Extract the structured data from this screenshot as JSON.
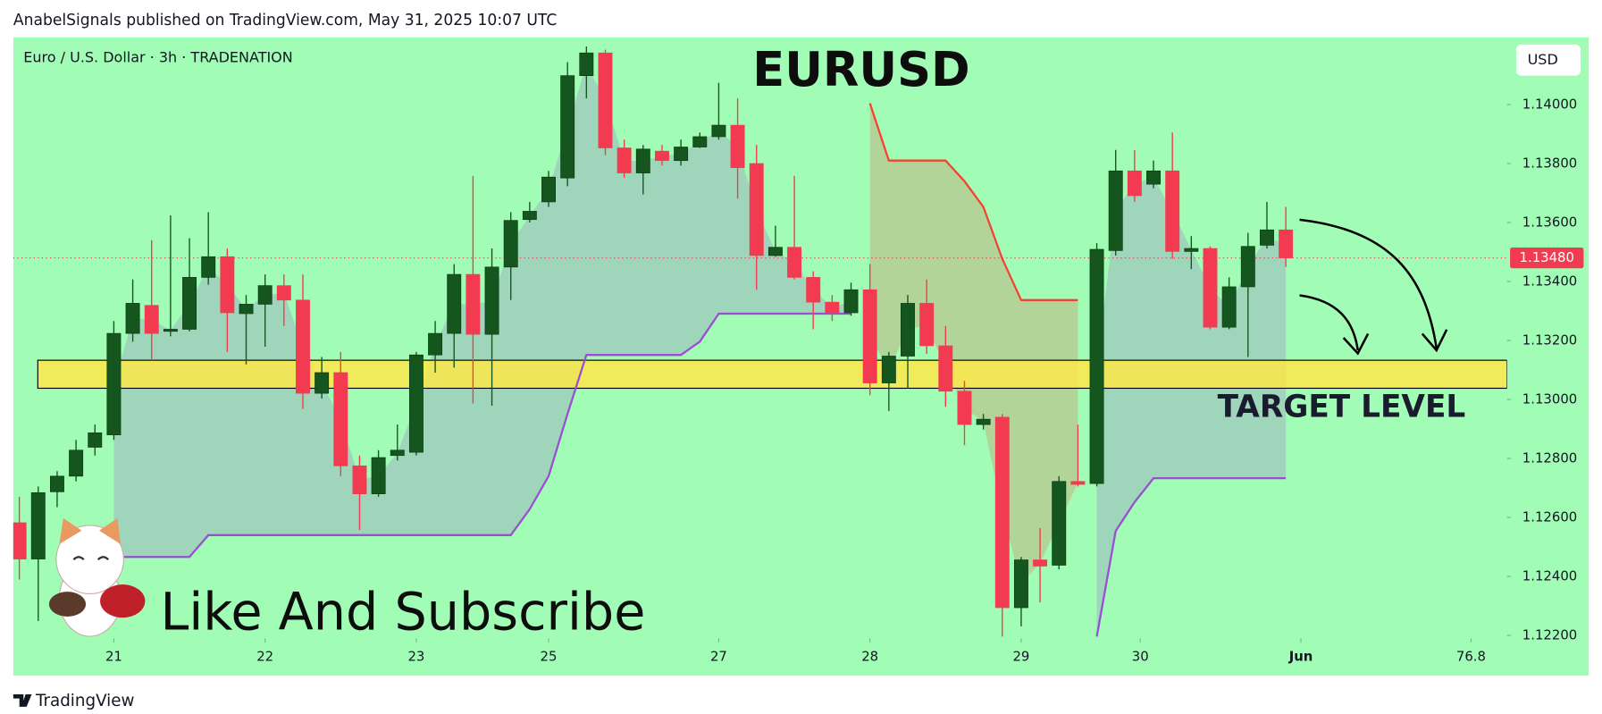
{
  "header": {
    "text": "AnabelSignals published on TradingView.com, May 31, 2025 10:07 UTC"
  },
  "footer": {
    "brand": "TradingView"
  },
  "chart_data": {
    "type": "candlestick",
    "symbol_info": "Euro / U.S. Dollar · 3h · TRADENATION",
    "title": "EURUSD",
    "currency": "USD",
    "annotations": {
      "target": "TARGET LEVEL",
      "call_to_action": "Like And Subscribe"
    },
    "categories": [
      null,
      null,
      null,
      null,
      null,
      null,
      null,
      null,
      null,
      null,
      null,
      null,
      null,
      null,
      null,
      null,
      null,
      null,
      null,
      null,
      null,
      null,
      null,
      null,
      null,
      null,
      null,
      null,
      null,
      null,
      null,
      null,
      null,
      null,
      null,
      null,
      null,
      null,
      null,
      null,
      null,
      null,
      null,
      null,
      null,
      null,
      null,
      null,
      null,
      null,
      null,
      null,
      null,
      null,
      null,
      null,
      null,
      null,
      null,
      null,
      null,
      null,
      null,
      null,
      null,
      null,
      null,
      null
    ],
    "open": [
      1.12582,
      1.12459,
      1.12687,
      1.1274,
      1.12838,
      1.1288,
      1.13224,
      1.13319,
      1.13231,
      1.13238,
      1.13414,
      1.13484,
      1.13291,
      1.13323,
      1.13386,
      1.13337,
      1.13021,
      1.13091,
      1.12775,
      1.1268,
      1.1281,
      1.12821,
      1.13151,
      1.13224,
      1.13424,
      1.13221,
      1.13449,
      1.1361,
      1.1367,
      1.13751,
      1.14098,
      1.14175,
      1.13853,
      1.13768,
      1.13842,
      1.1381,
      1.13856,
      1.13891,
      1.1393,
      1.138,
      1.13488,
      1.13516,
      1.13414,
      1.1333,
      1.13294,
      1.13372,
      1.13056,
      1.13147,
      1.13326,
      1.13182,
      1.13028,
      1.12915,
      1.1294,
      1.12294,
      1.12456,
      1.12438,
      1.12722,
      1.12715,
      1.13505,
      1.13775,
      1.1373,
      1.13775,
      1.13502,
      1.13512,
      1.13245,
      1.13382,
      1.13523,
      1.13575
    ],
    "high": [
      1.1267,
      1.12705,
      1.12757,
      1.12863,
      1.12915,
      1.13266,
      1.13407,
      1.1354,
      1.13624,
      1.13547,
      1.13635,
      1.13512,
      1.13354,
      1.13424,
      1.13424,
      1.13424,
      1.13144,
      1.13161,
      1.1281,
      1.12828,
      1.12915,
      1.13161,
      1.13266,
      1.13459,
      1.13758,
      1.13512,
      1.13635,
      1.1367,
      1.13775,
      1.14144,
      1.14197,
      1.14186,
      1.13881,
      1.13863,
      1.13863,
      1.13881,
      1.13905,
      1.14074,
      1.14021,
      1.13863,
      1.13589,
      1.13758,
      1.13435,
      1.13354,
      1.13396,
      1.13459,
      1.13161,
      1.13354,
      1.13407,
      1.13249,
      1.13063,
      1.12951,
      1.12951,
      1.12466,
      1.12564,
      1.1274,
      1.12915,
      1.1353,
      1.13846,
      1.13846,
      1.1381,
      1.13905,
      1.13554,
      1.13519,
      1.13414,
      1.13565,
      1.1367,
      1.13653
    ],
    "low": [
      1.12389,
      1.12249,
      1.12635,
      1.12722,
      1.1281,
      1.12863,
      1.13196,
      1.13133,
      1.13214,
      1.13231,
      1.13389,
      1.13161,
      1.13119,
      1.13179,
      1.13249,
      1.12968,
      1.13003,
      1.1274,
      1.12557,
      1.1267,
      1.12793,
      1.1281,
      1.13091,
      1.13108,
      1.12986,
      1.12979,
      1.13337,
      1.136,
      1.13653,
      1.13723,
      1.14021,
      1.13828,
      1.13751,
      1.13695,
      1.13793,
      1.13793,
      1.13853,
      1.13881,
      1.13681,
      1.13372,
      1.13484,
      1.13407,
      1.13238,
      1.13266,
      1.13284,
      1.13014,
      1.12961,
      1.13038,
      1.13154,
      1.12975,
      1.12845,
      1.12898,
      1.12196,
      1.12231,
      1.12312,
      1.12424,
      1.12705,
      1.12705,
      1.13488,
      1.1367,
      1.13716,
      1.13477,
      1.13442,
      1.13238,
      1.13238,
      1.13144,
      1.13512,
      1.13449
    ],
    "close": [
      1.12459,
      1.12684,
      1.1274,
      1.12828,
      1.12887,
      1.13224,
      1.13326,
      1.13224,
      1.13238,
      1.13414,
      1.13484,
      1.13294,
      1.13323,
      1.13386,
      1.13337,
      1.13021,
      1.13091,
      1.12775,
      1.1268,
      1.12803,
      1.12828,
      1.13151,
      1.13224,
      1.13424,
      1.13221,
      1.13449,
      1.13607,
      1.13638,
      1.13754,
      1.14098,
      1.14175,
      1.13853,
      1.13768,
      1.13849,
      1.1381,
      1.13856,
      1.13891,
      1.1393,
      1.13786,
      1.13488,
      1.13516,
      1.13414,
      1.1333,
      1.13294,
      1.13372,
      1.13056,
      1.13147,
      1.13326,
      1.13182,
      1.13028,
      1.12915,
      1.12933,
      1.12294,
      1.12456,
      1.12435,
      1.12722,
      1.12712,
      1.13509,
      1.13775,
      1.13691,
      1.13775,
      1.13502,
      1.13512,
      1.13245,
      1.13382,
      1.13519,
      1.13575,
      1.1348
    ],
    "up_color": "#15561f",
    "down_color": "#f23b51",
    "lines": [
      {
        "color": "#9a4fd0",
        "values": [
          null,
          null,
          null,
          null,
          null,
          1.12466,
          1.12466,
          1.12466,
          1.12466,
          1.12466,
          1.1254,
          1.1254,
          1.1254,
          1.1254,
          1.1254,
          1.1254,
          1.1254,
          1.1254,
          1.1254,
          1.1254,
          1.1254,
          1.1254,
          1.1254,
          1.1254,
          1.1254,
          1.1254,
          1.1254,
          1.12628,
          1.1274,
          1.12951,
          1.13151,
          1.13151,
          1.13151,
          1.13151,
          1.13151,
          1.13151,
          1.13196,
          1.13291,
          1.13291,
          1.13291,
          1.13291,
          1.13291,
          1.13291,
          1.13291,
          1.13291,
          null,
          null,
          null,
          null,
          null,
          null,
          null,
          null,
          null,
          null,
          null,
          null,
          1.12196,
          1.12554,
          1.12652,
          1.12733,
          1.12733,
          1.12733,
          1.12733,
          1.12733,
          1.12733,
          1.12733,
          1.12733
        ]
      },
      {
        "color": "#f44336",
        "values": [
          null,
          null,
          null,
          null,
          null,
          null,
          null,
          null,
          null,
          null,
          null,
          null,
          null,
          null,
          null,
          null,
          null,
          null,
          null,
          null,
          null,
          null,
          null,
          null,
          null,
          null,
          null,
          null,
          null,
          null,
          null,
          null,
          null,
          null,
          null,
          null,
          null,
          null,
          null,
          null,
          null,
          null,
          null,
          null,
          null,
          1.14004,
          1.1381,
          1.1381,
          1.1381,
          1.1381,
          1.1374,
          1.13653,
          1.13477,
          1.13337,
          1.13337,
          1.13337,
          1.13337,
          null,
          null,
          null,
          null,
          null,
          null,
          null,
          null,
          null,
          null,
          null
        ]
      }
    ],
    "target_zone": [
      1.13038,
      1.13133
    ],
    "target_zone_color": "#fde84a",
    "current_price": {
      "value": 1.1348,
      "label": "1.13480"
    },
    "xlim": [
      -0.32,
      78.7
    ],
    "xticks": [
      {
        "value": 5,
        "label": "21"
      },
      {
        "value": 13,
        "label": "22"
      },
      {
        "value": 21,
        "label": "23"
      },
      {
        "value": 28,
        "label": "25"
      },
      {
        "value": 37,
        "label": "27"
      },
      {
        "value": 45,
        "label": "28"
      },
      {
        "value": 53,
        "label": "29"
      },
      {
        "value": 59.3,
        "label": "30"
      },
      {
        "value": 67.8,
        "label": "Jun"
      },
      76.8
    ],
    "ylim": [
      1.1219,
      1.14228
    ],
    "yticks": [
      {
        "value": 1.122,
        "label": "1.12200"
      },
      {
        "value": 1.124,
        "label": "1.12400"
      },
      {
        "value": 1.126,
        "label": "1.12600"
      },
      {
        "value": 1.128,
        "label": "1.12800"
      },
      {
        "value": 1.13,
        "label": "1.13000"
      },
      {
        "value": 1.132,
        "label": "1.13200"
      },
      {
        "value": 1.134,
        "label": "1.13400"
      },
      {
        "value": 1.136,
        "label": "1.13600"
      },
      {
        "value": 1.138,
        "label": "1.13800"
      },
      {
        "value": 1.14,
        "label": "1.14000"
      }
    ]
  }
}
